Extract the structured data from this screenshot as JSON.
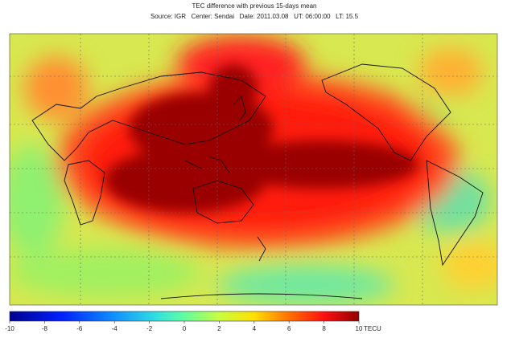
{
  "title": "TEC difference with previous 15-days mean",
  "subtitle": "Source: IGR   Center: Sendai   Date: 2011.03.08   UT: 06:00:00   LT: 15.5",
  "colorbar": {
    "lim": [
      -10,
      10
    ],
    "ticks": [
      -10,
      -8,
      -6,
      -4,
      -2,
      0,
      2,
      4,
      6,
      8,
      10
    ],
    "unit": "TECU"
  }
}
